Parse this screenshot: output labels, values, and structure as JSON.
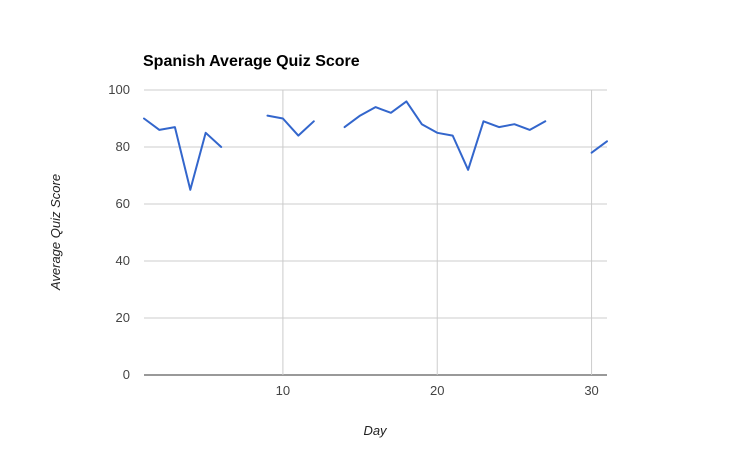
{
  "chart_data": {
    "type": "line",
    "title": "Spanish Average Quiz Score",
    "xlabel": "Day",
    "ylabel": "Average Quiz Score",
    "xlim": [
      1,
      31
    ],
    "ylim": [
      0,
      100
    ],
    "x_ticks": [
      10,
      20,
      30
    ],
    "y_ticks": [
      0,
      20,
      40,
      60,
      80,
      100
    ],
    "grid": true,
    "legend": "none",
    "colors": {
      "series": "#3366cc",
      "grid": "#cccccc",
      "baseline": "#333333"
    },
    "x": [
      1,
      2,
      3,
      4,
      5,
      6,
      7,
      8,
      9,
      10,
      11,
      12,
      13,
      14,
      15,
      16,
      17,
      18,
      19,
      20,
      21,
      22,
      23,
      24,
      25,
      26,
      27,
      28,
      29,
      30,
      31
    ],
    "series": [
      {
        "values": [
          90,
          86,
          87,
          65,
          85,
          80,
          null,
          null,
          91,
          90,
          84,
          89,
          null,
          87,
          91,
          94,
          92,
          96,
          88,
          85,
          84,
          72,
          89,
          87,
          88,
          86,
          89,
          null,
          null,
          78,
          82
        ]
      }
    ]
  }
}
